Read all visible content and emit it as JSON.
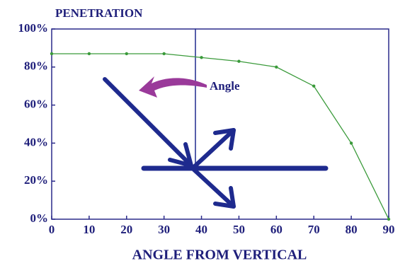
{
  "chart_data": {
    "type": "line",
    "title": "PENETRATION",
    "x_label": "ANGLE FROM VERTICAL",
    "annotation": "Angle",
    "x": [
      0,
      10,
      20,
      30,
      40,
      50,
      60,
      70,
      80,
      90
    ],
    "values": [
      87,
      87,
      87,
      87,
      85,
      83,
      80,
      70,
      40,
      0
    ],
    "color": "#3a9a3a",
    "xlim": [
      0,
      90
    ],
    "xticks": [
      0,
      10,
      20,
      30,
      40,
      50,
      60,
      70,
      80,
      90
    ],
    "ylim": [
      0,
      100
    ],
    "yticks": [
      {
        "value": 0,
        "label": "0%"
      },
      {
        "value": 20,
        "label": "20%"
      },
      {
        "value": 40,
        "label": "40%"
      },
      {
        "value": 60,
        "label": "60%"
      },
      {
        "value": 80,
        "label": "80%"
      },
      {
        "value": 100,
        "label": "100%"
      }
    ],
    "grid": false
  }
}
